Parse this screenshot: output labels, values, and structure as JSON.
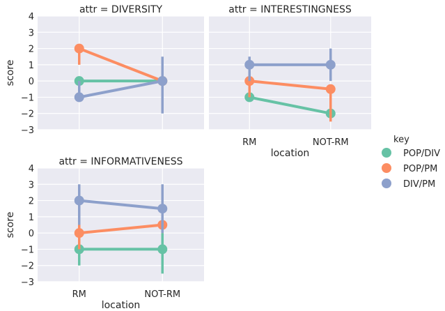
{
  "chart_data": {
    "type": "point",
    "categories": [
      "RM",
      "NOT-RM"
    ],
    "xlabel": "location",
    "ylabel": "score",
    "ylim": [
      -3,
      4
    ],
    "yticks": [
      4,
      3,
      2,
      1,
      0,
      -1,
      -2,
      -3
    ],
    "ytick_labels": [
      "4",
      "3",
      "2",
      "1",
      "0",
      "−1",
      "−2",
      "−3"
    ],
    "grid": true,
    "legend": {
      "title": "key",
      "position": "right",
      "entries": [
        "POP/DIV",
        "POP/PM",
        "DIV/PM"
      ]
    },
    "colors": {
      "POP/DIV": "#66c2a5",
      "POP/PM": "#fc8d62",
      "DIV/PM": "#8da0cb"
    },
    "panels": [
      {
        "title": "attr = DIVERSITY",
        "series": [
          {
            "name": "POP/DIV",
            "values": [
              0,
              0
            ],
            "ci": [
              [
                0,
                0
              ],
              [
                0,
                0
              ]
            ]
          },
          {
            "name": "POP/PM",
            "values": [
              2,
              0
            ],
            "ci": [
              [
                1,
                2
              ],
              [
                0,
                0
              ]
            ]
          },
          {
            "name": "DIV/PM",
            "values": [
              -1,
              0
            ],
            "ci": [
              [
                -1,
                0
              ],
              [
                -2,
                1.5
              ]
            ]
          }
        ]
      },
      {
        "title": "attr = INTERESTINGNESS",
        "series": [
          {
            "name": "POP/DIV",
            "values": [
              -1,
              -2
            ],
            "ci": [
              [
                -1,
                -1
              ],
              [
                -2,
                -2
              ]
            ]
          },
          {
            "name": "POP/PM",
            "values": [
              0,
              -0.5
            ],
            "ci": [
              [
                -1,
                0
              ],
              [
                -2.5,
                -0.5
              ]
            ]
          },
          {
            "name": "DIV/PM",
            "values": [
              1,
              1
            ],
            "ci": [
              [
                0,
                1.5
              ],
              [
                0,
                2
              ]
            ]
          }
        ]
      },
      {
        "title": "attr = INFORMATIVENESS",
        "series": [
          {
            "name": "POP/DIV",
            "values": [
              -1,
              -1
            ],
            "ci": [
              [
                -2,
                -1
              ],
              [
                -2.5,
                0
              ]
            ]
          },
          {
            "name": "POP/PM",
            "values": [
              0,
              0.5
            ],
            "ci": [
              [
                -1,
                1
              ],
              [
                0,
                0.5
              ]
            ]
          },
          {
            "name": "DIV/PM",
            "values": [
              2,
              1.5
            ],
            "ci": [
              [
                0.5,
                3
              ],
              [
                0,
                3
              ]
            ]
          }
        ]
      }
    ]
  }
}
